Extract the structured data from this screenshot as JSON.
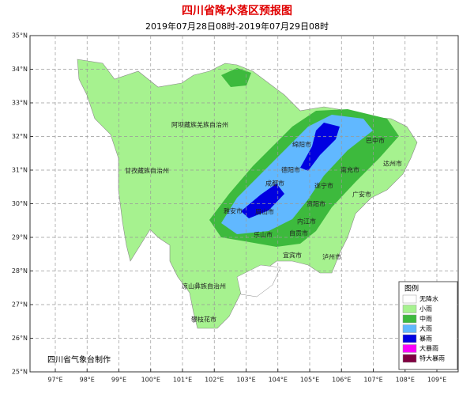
{
  "header": {
    "title": "四川省降水落区预报图",
    "subtitle": "2019年07月28日08时-2019年07月29日08时"
  },
  "lat_labels": [
    "35°N",
    "34°N",
    "33°N",
    "32°N",
    "31°N",
    "30°N",
    "29°N",
    "28°N",
    "27°N",
    "26°N",
    "25°N"
  ],
  "lon_labels": [
    "97°E",
    "98°E",
    "99°E",
    "100°E",
    "101°E",
    "102°E",
    "103°E",
    "104°E",
    "105°E",
    "106°E",
    "107°E",
    "108°E",
    "109°E"
  ],
  "regions": [
    "阿坝藏族羌族自治州",
    "甘孜藏族自治州",
    "凉山彝族自治州",
    "攀枝花市",
    "绵阳市",
    "巴中市",
    "达州市",
    "德阳市",
    "南充市",
    "成都市",
    "遂宁市",
    "广安市",
    "雅安市",
    "眉山市",
    "资阳市",
    "内江市",
    "乐山市",
    "自贡市",
    "宜宾市",
    "泸州市"
  ],
  "legend": {
    "title": "图例",
    "items": [
      {
        "label": "无降水",
        "color": "#ffffff"
      },
      {
        "label": "小雨",
        "color": "#a6f28f"
      },
      {
        "label": "中雨",
        "color": "#3dba3d"
      },
      {
        "label": "大雨",
        "color": "#61b8ff"
      },
      {
        "label": "暴雨",
        "color": "#0000e1"
      },
      {
        "label": "大暴雨",
        "color": "#fa00fa"
      },
      {
        "label": "特大暴雨",
        "color": "#800040"
      }
    ]
  },
  "credit": "四川省气象台制作"
}
